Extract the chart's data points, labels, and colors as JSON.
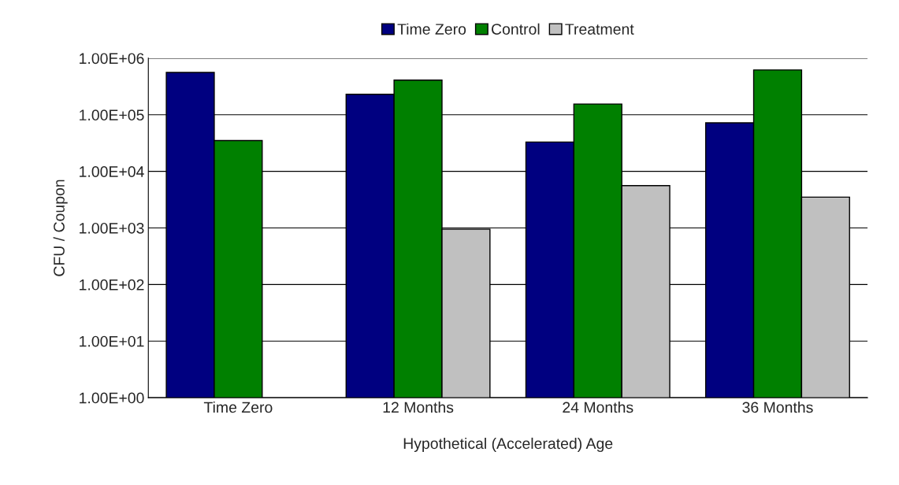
{
  "chart_data": {
    "type": "bar",
    "xlabel": "Hypothetical (Accelerated) Age",
    "ylabel": "CFU / Coupon",
    "categories": [
      "Time Zero",
      "12 Months",
      "24 Months",
      "36 Months"
    ],
    "series": [
      {
        "name": "Time Zero",
        "color": "#000080",
        "values": [
          560000,
          230000,
          33000,
          72000
        ]
      },
      {
        "name": "Control",
        "color": "#008000",
        "values": [
          35000,
          410000,
          155000,
          620000
        ]
      },
      {
        "name": "Treatment",
        "color": "#c0c0c0",
        "values": [
          null,
          950,
          5600,
          3500
        ]
      }
    ],
    "log": "y",
    "ylim": [
      1,
      1000000
    ],
    "yticks": [
      {
        "value": 1,
        "label": "1.00E+00"
      },
      {
        "value": 10,
        "label": "1.00E+01"
      },
      {
        "value": 100,
        "label": "1.00E+02"
      },
      {
        "value": 1000,
        "label": "1.00E+03"
      },
      {
        "value": 10000,
        "label": "1.00E+04"
      },
      {
        "value": 100000,
        "label": "1.00E+05"
      },
      {
        "value": 1000000,
        "label": "1.00E+06"
      }
    ],
    "grid": "y",
    "legend": "top"
  }
}
